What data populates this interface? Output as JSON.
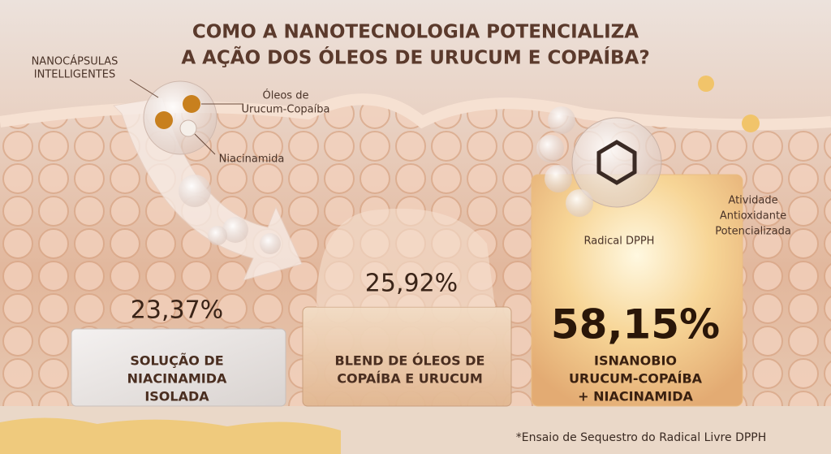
{
  "title": [
    "COMO A NANOTECNOLOGIA POTENCIALIZA",
    "A AÇÃO DOS ÓLEOS DE URUCUM E COPAÍBA?"
  ],
  "annotations": {
    "nanocapsulas": [
      "NANOCÁPSULAS",
      "INTELLIGENTES"
    ],
    "oleos": [
      "Óleos de",
      "Urucum-Copaíba"
    ],
    "niacinamida": "Niacinamida",
    "radical": "Radical DPPH",
    "atividade": [
      "Atividade",
      "Antioxidante",
      "Potencializada"
    ]
  },
  "items": [
    {
      "value": "23,37%",
      "label": [
        "SOLUÇÃO DE",
        "NIACINAMIDA",
        "ISOLADA"
      ]
    },
    {
      "value": "25,92%",
      "label": [
        "BLEND DE ÓLEOS DE",
        "COPAÍBA E URUCUM"
      ]
    },
    {
      "value": "58,15%",
      "label": [
        "ISNANOBIO",
        "URUCUM-COPAÍBA",
        "+ NIACINAMIDA"
      ]
    }
  ],
  "footnote": "*Ensaio de Sequestro do Radical Livre DPPH"
}
